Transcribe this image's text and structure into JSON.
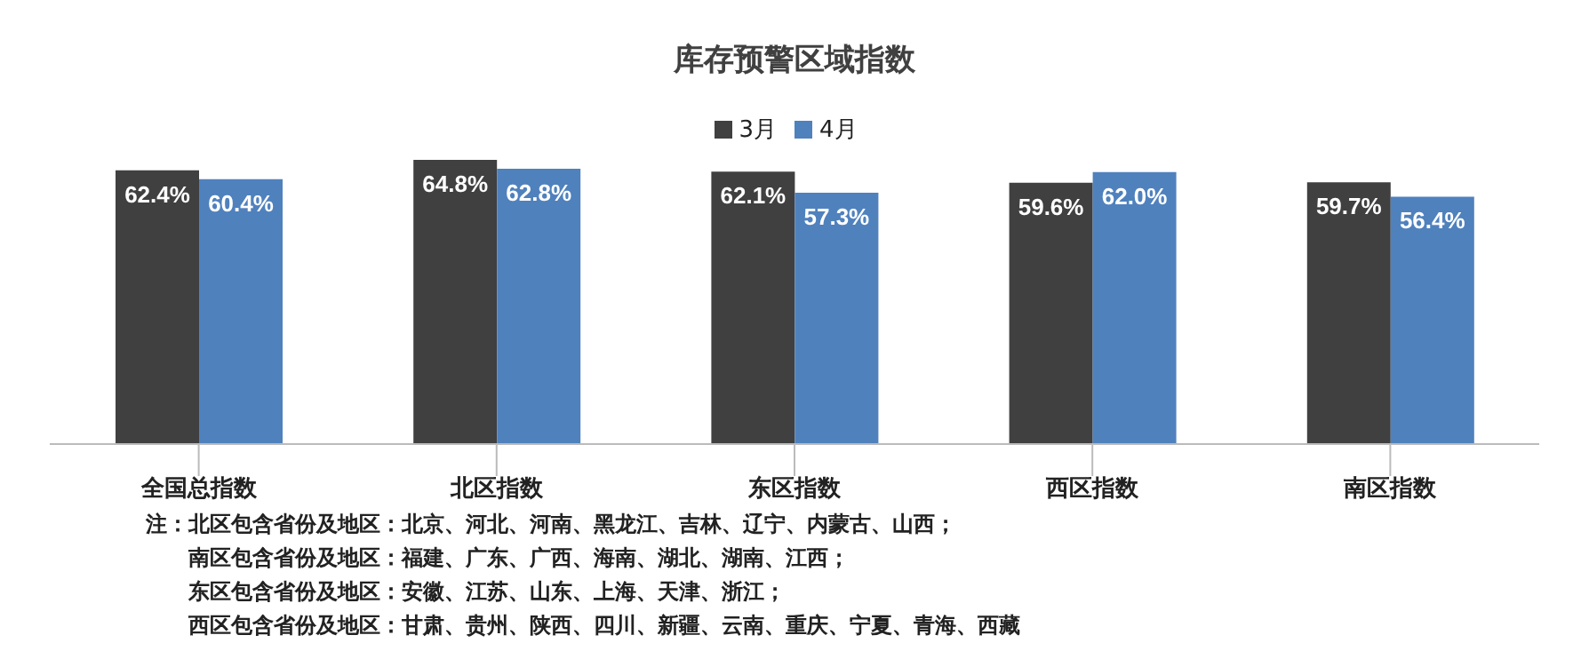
{
  "chart_data": {
    "type": "bar",
    "title": "库存预警区域指数",
    "categories": [
      "全国总指数",
      "北区指数",
      "东区指数",
      "西区指数",
      "南区指数"
    ],
    "series": [
      {
        "name": "3月",
        "color": "#404040",
        "values": [
          62.4,
          64.8,
          62.1,
          59.6,
          59.7
        ],
        "value_labels": [
          "62.4%",
          "64.8%",
          "62.1%",
          "59.6%",
          "59.7%"
        ]
      },
      {
        "name": "4月",
        "color": "#4f81bd",
        "values": [
          60.4,
          62.8,
          57.3,
          62.0,
          56.4
        ],
        "value_labels": [
          "60.4%",
          "62.8%",
          "57.3%",
          "62.0%",
          "56.4%"
        ]
      }
    ],
    "grid": false,
    "legend": "top",
    "tick_labels": "x",
    "annotations": [
      "注：北区包含省份及地区：北京、河北、河南、黑龙江、吉林、辽宁、内蒙古、山西；",
      "南区包含省份及地区：福建、广东、广西、海南、湖北、湖南、江西；",
      "东区包含省份及地区：安徽、江苏、山东、上海、天津、浙江；",
      "西区包含省份及地区：甘肃、贵州、陕西、四川、新疆、云南、重庆、宁夏、青海、西藏"
    ]
  }
}
